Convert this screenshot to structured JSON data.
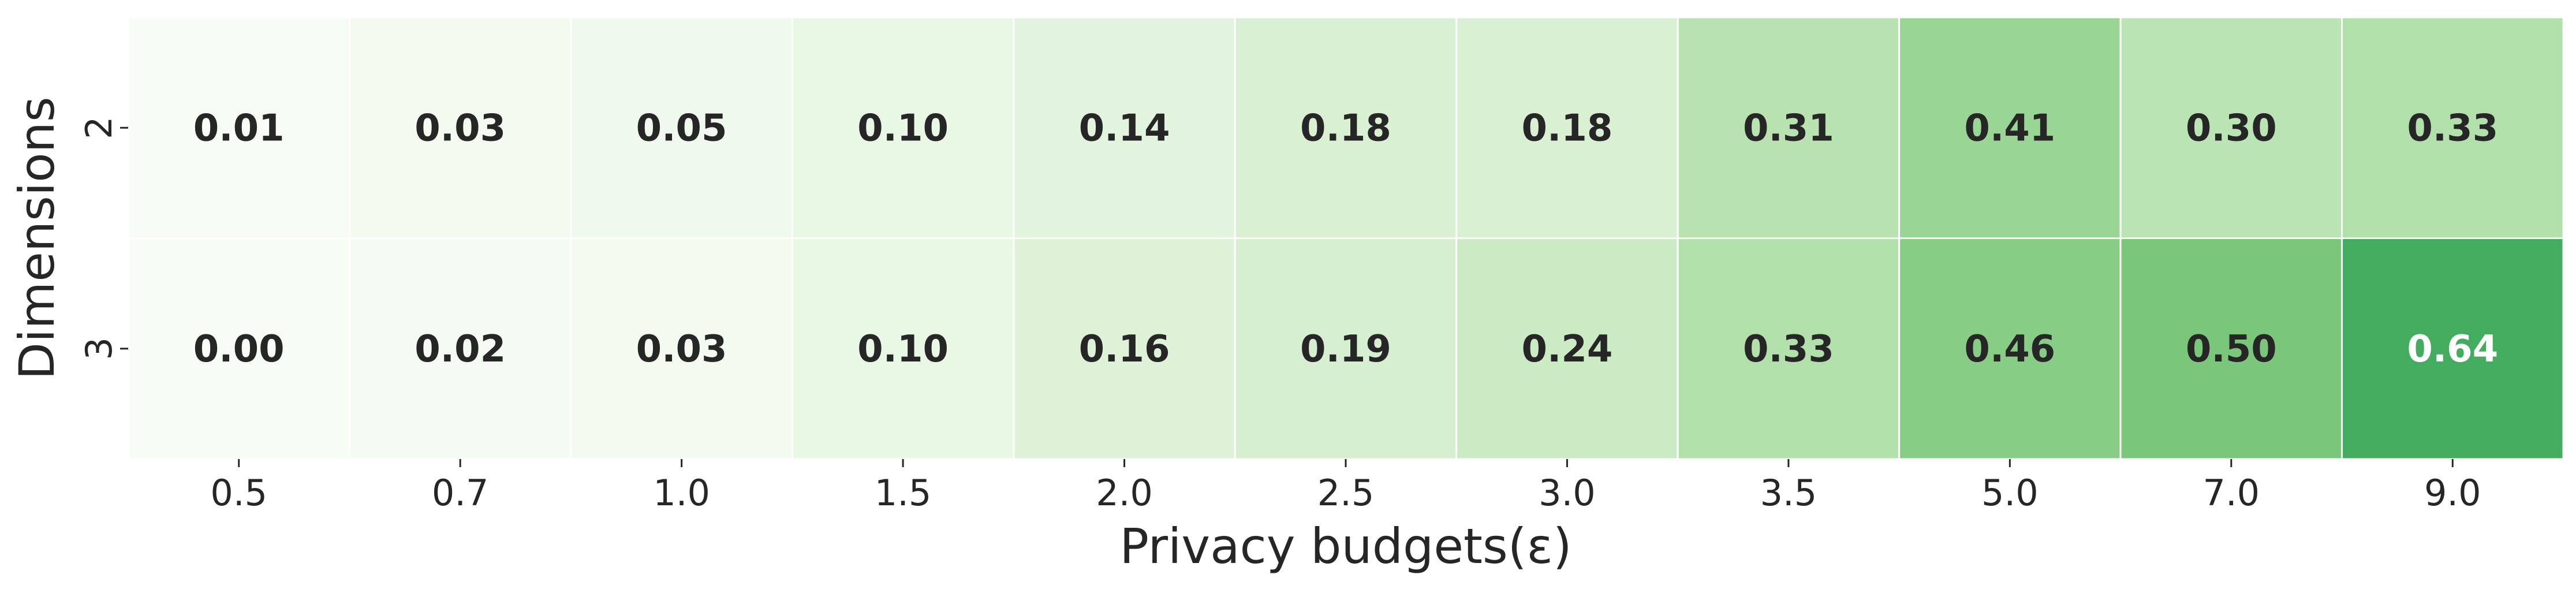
{
  "chart_data": {
    "type": "heatmap",
    "xlabel": "Privacy budgets(ε)",
    "ylabel": "Dimensions",
    "x_categories": [
      "0.5",
      "0.7",
      "1.0",
      "1.5",
      "2.0",
      "2.5",
      "3.0",
      "3.5",
      "5.0",
      "7.0",
      "9.0"
    ],
    "y_categories": [
      "2",
      "3"
    ],
    "values": [
      [
        0.01,
        0.03,
        0.05,
        0.1,
        0.14,
        0.18,
        0.18,
        0.31,
        0.41,
        0.3,
        0.33
      ],
      [
        0.0,
        0.02,
        0.03,
        0.1,
        0.16,
        0.19,
        0.24,
        0.33,
        0.46,
        0.5,
        0.64
      ]
    ],
    "value_labels": [
      [
        "0.01",
        "0.03",
        "0.05",
        "0.10",
        "0.14",
        "0.18",
        "0.18",
        "0.31",
        "0.41",
        "0.30",
        "0.33"
      ],
      [
        "0.00",
        "0.02",
        "0.03",
        "0.10",
        "0.16",
        "0.19",
        "0.24",
        "0.33",
        "0.46",
        "0.50",
        "0.64"
      ]
    ],
    "colormap": "Greens",
    "colorbar": false,
    "cell_borders": "#ffffff",
    "label_colors": {
      "dark": "#262626",
      "light": "#ffffff"
    }
  }
}
